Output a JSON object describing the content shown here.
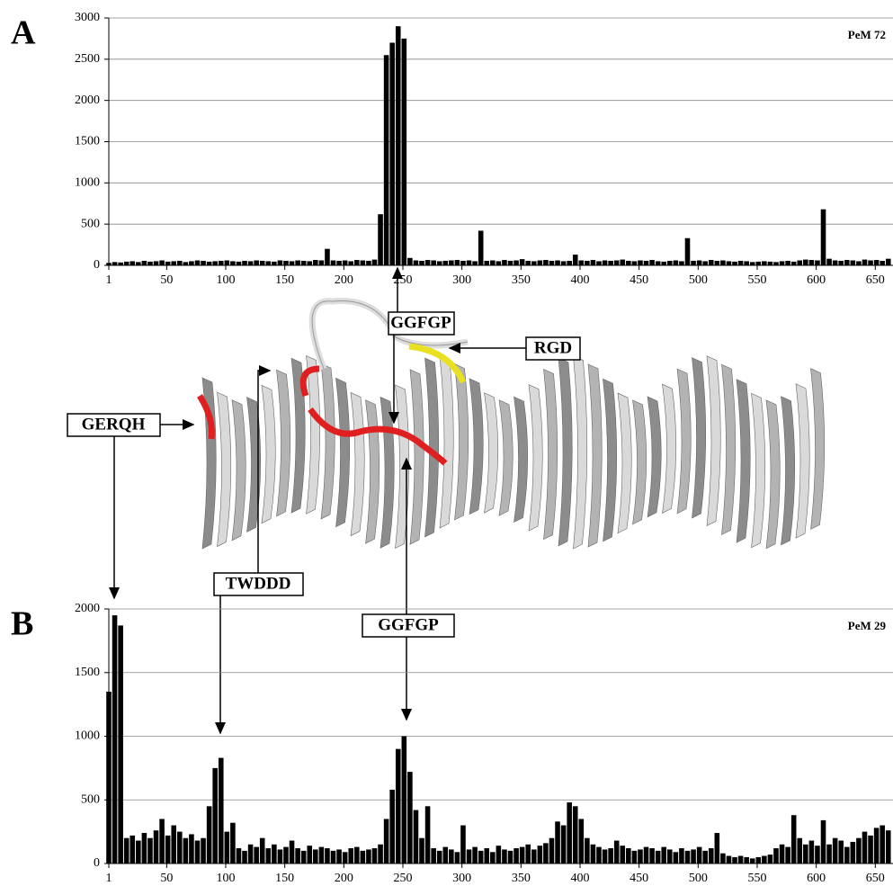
{
  "chart_data": [
    {
      "type": "bar",
      "panel": "A",
      "title": "PeM 72",
      "color": "#000000",
      "x": [
        1,
        6,
        11,
        16,
        21,
        26,
        31,
        36,
        41,
        46,
        51,
        56,
        61,
        66,
        71,
        76,
        81,
        86,
        91,
        96,
        101,
        106,
        111,
        116,
        121,
        126,
        131,
        136,
        141,
        146,
        151,
        156,
        161,
        166,
        171,
        176,
        181,
        186,
        191,
        196,
        201,
        206,
        211,
        216,
        221,
        226,
        231,
        236,
        241,
        246,
        251,
        256,
        261,
        266,
        271,
        276,
        281,
        286,
        291,
        296,
        301,
        306,
        311,
        316,
        321,
        326,
        331,
        336,
        341,
        346,
        351,
        356,
        361,
        366,
        371,
        376,
        381,
        386,
        391,
        396,
        401,
        406,
        411,
        416,
        421,
        426,
        431,
        436,
        441,
        446,
        451,
        456,
        461,
        466,
        471,
        476,
        481,
        486,
        491,
        496,
        501,
        506,
        511,
        516,
        521,
        526,
        531,
        536,
        541,
        546,
        551,
        556,
        561,
        566,
        571,
        576,
        581,
        586,
        591,
        596,
        601,
        606,
        611,
        616,
        621,
        626,
        631,
        636,
        641,
        646,
        651,
        656,
        661
      ],
      "values": [
        30,
        40,
        35,
        45,
        50,
        40,
        55,
        45,
        50,
        60,
        45,
        50,
        55,
        40,
        50,
        60,
        55,
        45,
        50,
        55,
        60,
        50,
        45,
        55,
        50,
        60,
        55,
        50,
        45,
        60,
        55,
        50,
        60,
        55,
        50,
        65,
        60,
        200,
        60,
        55,
        60,
        50,
        65,
        60,
        55,
        70,
        620,
        2550,
        2700,
        2900,
        2750,
        90,
        60,
        55,
        65,
        60,
        50,
        55,
        60,
        65,
        55,
        60,
        50,
        420,
        55,
        60,
        50,
        65,
        55,
        60,
        75,
        55,
        50,
        60,
        65,
        55,
        60,
        50,
        55,
        130,
        60,
        55,
        65,
        50,
        60,
        55,
        60,
        70,
        55,
        50,
        60,
        55,
        65,
        50,
        45,
        55,
        60,
        50,
        330,
        55,
        60,
        50,
        65,
        55,
        60,
        50,
        45,
        55,
        50,
        40,
        45,
        50,
        45,
        40,
        50,
        55,
        45,
        60,
        70,
        65,
        60,
        680,
        80,
        60,
        55,
        65,
        60,
        50,
        70,
        60,
        65,
        55,
        80
      ],
      "xlim": [
        1,
        665
      ],
      "xticks": [
        1,
        50,
        100,
        150,
        200,
        250,
        300,
        350,
        400,
        450,
        500,
        550,
        600,
        650
      ],
      "ylim": [
        0,
        3000
      ],
      "yticks": [
        0,
        500,
        1000,
        1500,
        2000,
        2500,
        3000
      ],
      "grid": true
    },
    {
      "type": "bar",
      "panel": "B",
      "title": "PeM 29",
      "color": "#000000",
      "x": [
        1,
        6,
        11,
        16,
        21,
        26,
        31,
        36,
        41,
        46,
        51,
        56,
        61,
        66,
        71,
        76,
        81,
        86,
        91,
        96,
        101,
        106,
        111,
        116,
        121,
        126,
        131,
        136,
        141,
        146,
        151,
        156,
        161,
        166,
        171,
        176,
        181,
        186,
        191,
        196,
        201,
        206,
        211,
        216,
        221,
        226,
        231,
        236,
        241,
        246,
        251,
        256,
        261,
        266,
        271,
        276,
        281,
        286,
        291,
        296,
        301,
        306,
        311,
        316,
        321,
        326,
        331,
        336,
        341,
        346,
        351,
        356,
        361,
        366,
        371,
        376,
        381,
        386,
        391,
        396,
        401,
        406,
        411,
        416,
        421,
        426,
        431,
        436,
        441,
        446,
        451,
        456,
        461,
        466,
        471,
        476,
        481,
        486,
        491,
        496,
        501,
        506,
        511,
        516,
        521,
        526,
        531,
        536,
        541,
        546,
        551,
        556,
        561,
        566,
        571,
        576,
        581,
        586,
        591,
        596,
        601,
        606,
        611,
        616,
        621,
        626,
        631,
        636,
        641,
        646,
        651,
        656,
        661
      ],
      "values": [
        1350,
        1950,
        1870,
        200,
        220,
        180,
        240,
        200,
        260,
        350,
        220,
        300,
        250,
        200,
        230,
        180,
        200,
        450,
        750,
        830,
        250,
        320,
        120,
        100,
        150,
        130,
        200,
        120,
        150,
        110,
        130,
        180,
        120,
        100,
        140,
        110,
        130,
        120,
        100,
        110,
        90,
        120,
        130,
        100,
        110,
        120,
        150,
        350,
        580,
        900,
        1000,
        720,
        420,
        200,
        450,
        120,
        100,
        130,
        110,
        90,
        300,
        110,
        130,
        100,
        120,
        90,
        140,
        110,
        100,
        120,
        130,
        150,
        110,
        140,
        160,
        200,
        330,
        300,
        480,
        450,
        350,
        200,
        150,
        130,
        110,
        120,
        180,
        140,
        120,
        100,
        110,
        130,
        120,
        100,
        130,
        110,
        90,
        120,
        100,
        110,
        130,
        100,
        120,
        240,
        80,
        60,
        50,
        60,
        50,
        40,
        50,
        60,
        70,
        120,
        150,
        130,
        380,
        200,
        150,
        180,
        140,
        340,
        150,
        200,
        180,
        130,
        170,
        200,
        250,
        220,
        280,
        300,
        260
      ],
      "xlim": [
        1,
        665
      ],
      "xticks": [
        1,
        50,
        100,
        150,
        200,
        250,
        300,
        350,
        400,
        450,
        500,
        550,
        600,
        650
      ],
      "ylim": [
        0,
        2000
      ],
      "yticks": [
        0,
        500,
        1000,
        1500,
        2000
      ],
      "grid": true
    }
  ],
  "structure_labels": [
    "GGFGP",
    "RGD",
    "GERQH",
    "TWDDD",
    "GGFGP"
  ]
}
